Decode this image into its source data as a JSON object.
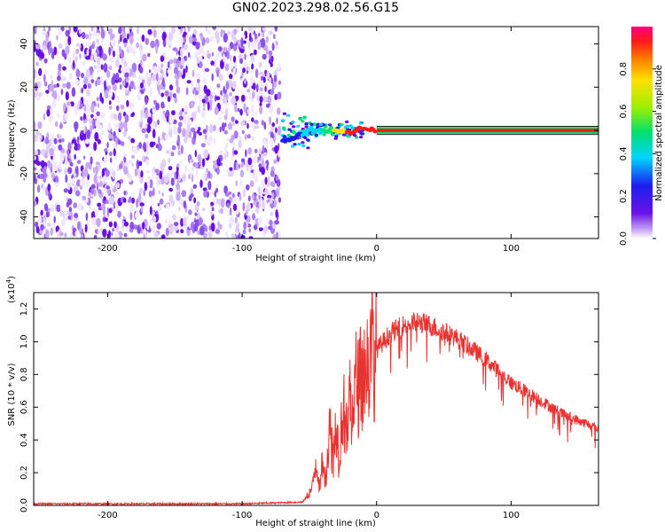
{
  "title": "GN02.2023.298.02.56.G15",
  "colors": {
    "snr_line": "#e8322f",
    "frame": "#000000",
    "spectrum_base": "#6a11e6"
  },
  "chart_data": [
    {
      "type": "heatmap",
      "name": "spectrogram",
      "xlabel": "Height of straight line (km)",
      "ylabel": "Frequency (Hz)",
      "xlim": [
        -255,
        165
      ],
      "ylim": [
        -50,
        48
      ],
      "xticks": [
        -200,
        -100,
        0,
        100
      ],
      "yticks": [
        -40,
        -20,
        0,
        20,
        40
      ],
      "noise_region_x": [
        -255,
        -72
      ],
      "signal": {
        "description_points_x": [
          -70,
          -60,
          -50,
          -40,
          -30,
          -20,
          -12,
          0,
          165
        ],
        "center_freq": [
          -5,
          -3,
          0,
          0,
          0,
          -1,
          1,
          0,
          0
        ],
        "amplitude": [
          0.3,
          0.4,
          0.5,
          0.6,
          0.8,
          0.9,
          0.95,
          1.0,
          1.0
        ]
      },
      "colorbar": {
        "label": "Normalized spectral amplitude",
        "range": [
          0,
          1
        ],
        "ticks": [
          "0.0",
          "0.2",
          "0.4",
          "0.6",
          "0.8"
        ],
        "tick_values": [
          0,
          0.2,
          0.4,
          0.6,
          0.8
        ]
      }
    },
    {
      "type": "line",
      "name": "snr",
      "xlabel": "Height of straight line (km)",
      "ylabel": "SNR (10 * v/v)",
      "multiplier_label": "(x10",
      "multiplier_exp": "4",
      "xlim": [
        -255,
        165
      ],
      "ylim": [
        0,
        1.3
      ],
      "xticks": [
        -200,
        -100,
        0,
        100
      ],
      "yticks": [
        "0.0",
        "0.2",
        "0.4",
        "0.6",
        "0.8",
        "1.0",
        "1.2"
      ],
      "ytick_values": [
        0,
        0.2,
        0.4,
        0.6,
        0.8,
        1.0,
        1.2
      ],
      "series": [
        {
          "x": [
            -255,
            -100,
            -55,
            -48,
            -45,
            -42,
            -40,
            -38,
            -35,
            -32,
            -30,
            -28,
            -25,
            -22,
            -20,
            -18,
            -15,
            -12,
            -10,
            -5,
            0,
            5,
            10,
            20,
            30,
            40,
            60,
            80,
            100,
            120,
            140,
            165
          ],
          "y": [
            0.01,
            0.01,
            0.02,
            0.1,
            0.28,
            0.1,
            0.3,
            0.15,
            0.48,
            0.25,
            0.55,
            0.28,
            0.62,
            0.4,
            0.7,
            0.55,
            0.78,
            0.7,
            0.82,
            0.88,
            0.95,
            1.0,
            1.05,
            1.1,
            1.12,
            1.1,
            1.02,
            0.9,
            0.75,
            0.65,
            0.55,
            0.47
          ]
        }
      ]
    }
  ]
}
